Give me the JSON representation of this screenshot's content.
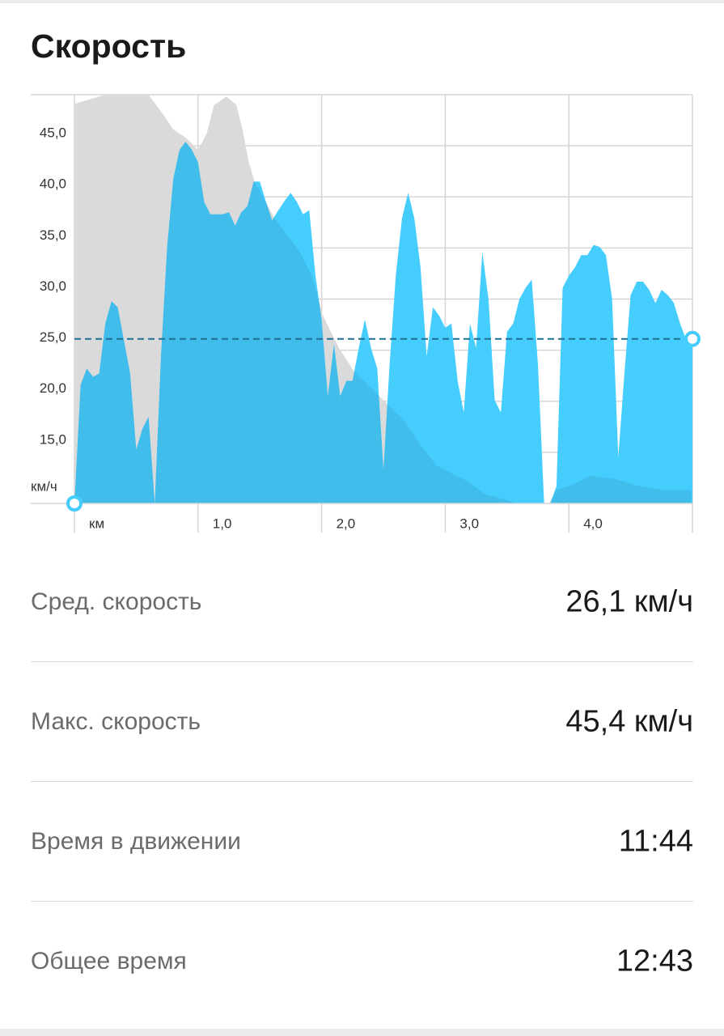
{
  "header": {
    "title": "Скорость"
  },
  "chart_data": {
    "type": "area",
    "x_label": "км",
    "y_label": "км/ч",
    "x": [
      0,
      0.05,
      0.1,
      0.15,
      0.2,
      0.25,
      0.3,
      0.35,
      0.4,
      0.45,
      0.5,
      0.55,
      0.6,
      0.65,
      0.7,
      0.75,
      0.8,
      0.85,
      0.9,
      0.95,
      1.0,
      1.05,
      1.1,
      1.15,
      1.2,
      1.25,
      1.3,
      1.35,
      1.4,
      1.45,
      1.5,
      1.55,
      1.6,
      1.65,
      1.7,
      1.75,
      1.8,
      1.85,
      1.9,
      1.95,
      2.0,
      2.05,
      2.1,
      2.15,
      2.2,
      2.25,
      2.3,
      2.35,
      2.4,
      2.45,
      2.5,
      2.55,
      2.6,
      2.65,
      2.7,
      2.75,
      2.8,
      2.85,
      2.9,
      2.95,
      3.0,
      3.05,
      3.1,
      3.15,
      3.2,
      3.25,
      3.3,
      3.35,
      3.4,
      3.45,
      3.5,
      3.55,
      3.6,
      3.65,
      3.7,
      3.75,
      3.8,
      3.85,
      3.9,
      3.95,
      4.0,
      4.05,
      4.1,
      4.15,
      4.2,
      4.25,
      4.3,
      4.35,
      4.4,
      4.45,
      4.5,
      4.55,
      4.6,
      4.65,
      4.7,
      4.75,
      4.8,
      4.85,
      4.9,
      4.95,
      5.0
    ],
    "series": [
      {
        "color": "#45cdfd",
        "values": [
          10.0,
          21.6,
          23.2,
          22.4,
          22.7,
          27.6,
          29.8,
          29.2,
          26.0,
          22.8,
          15.3,
          17.3,
          18.5,
          10.0,
          24.4,
          35.1,
          41.8,
          44.6,
          45.4,
          44.6,
          43.4,
          39.5,
          38.3,
          38.3,
          38.3,
          38.5,
          37.2,
          38.5,
          39.1,
          41.5,
          41.5,
          39.5,
          37.7,
          38.7,
          39.6,
          40.4,
          39.5,
          38.3,
          38.7,
          32.3,
          28.0,
          20.5,
          25.6,
          20.5,
          22.0,
          22.0,
          25.2,
          28.0,
          25.2,
          23.2,
          13.3,
          23.6,
          32.3,
          37.9,
          40.4,
          37.9,
          33.1,
          24.4,
          29.2,
          28.4,
          27.2,
          27.6,
          22.0,
          18.9,
          27.6,
          25.2,
          34.6,
          30.0,
          20.1,
          18.9,
          26.8,
          27.6,
          30.0,
          31.1,
          31.9,
          23.6,
          10.0,
          10.0,
          11.7,
          31.1,
          32.3,
          33.1,
          34.3,
          34.3,
          35.3,
          35.1,
          34.3,
          30.0,
          14.5,
          22.8,
          30.4,
          31.7,
          31.7,
          30.9,
          29.6,
          30.9,
          30.4,
          29.6,
          27.6,
          26.0,
          26.0
        ]
      },
      {
        "color": "#ececec",
        "x": [
          0,
          0.25,
          0.6,
          0.71,
          0.8,
          0.9,
          1.0,
          1.07,
          1.13,
          1.23,
          1.31,
          1.36,
          1.41,
          1.46,
          1.62,
          1.82,
          1.92,
          2.01,
          2.14,
          2.27,
          2.41,
          2.54,
          2.67,
          2.8,
          2.93,
          3.06,
          3.19,
          3.32,
          3.45,
          3.58,
          3.84,
          3.9,
          4.04,
          4.17,
          4.37,
          4.56,
          4.76,
          4.99
        ],
        "values": [
          49.1,
          50,
          50,
          48.2,
          46.6,
          45.8,
          44.6,
          46.2,
          49.0,
          49.8,
          49.0,
          46.6,
          43.4,
          41.4,
          37.9,
          34.7,
          32.3,
          28.4,
          25.2,
          22.8,
          21.2,
          19.6,
          18.1,
          15.7,
          13.7,
          12.9,
          12.1,
          10.9,
          10.5,
          10.0,
          10.0,
          11.3,
          11.9,
          12.7,
          12.4,
          11.7,
          11.3,
          11.3
        ]
      }
    ],
    "average": 26.1,
    "average_color": "#1f6f93",
    "xlim": [
      0,
      5.0
    ],
    "ylim": [
      10,
      50
    ],
    "xticks": [
      {
        "value": 1,
        "label": "1,0"
      },
      {
        "value": 2,
        "label": "2,0"
      },
      {
        "value": 3,
        "label": "3,0"
      },
      {
        "value": 4,
        "label": "4,0"
      }
    ],
    "yticks": [
      {
        "value": 15,
        "label": "15,0"
      },
      {
        "value": 20,
        "label": "20,0"
      },
      {
        "value": 25,
        "label": "25,0"
      },
      {
        "value": 30,
        "label": "30,0"
      },
      {
        "value": 35,
        "label": "35,0"
      },
      {
        "value": 40,
        "label": "40,0"
      },
      {
        "value": 45,
        "label": "45,0"
      }
    ],
    "grid": true
  },
  "stats": [
    {
      "label": "Сред. скорость",
      "value": "26,1 км/ч"
    },
    {
      "label": "Макс. скорость",
      "value": "45,4 км/ч"
    },
    {
      "label": "Время в движении",
      "value": "11:44"
    },
    {
      "label": "Общее время",
      "value": "12:43"
    }
  ]
}
